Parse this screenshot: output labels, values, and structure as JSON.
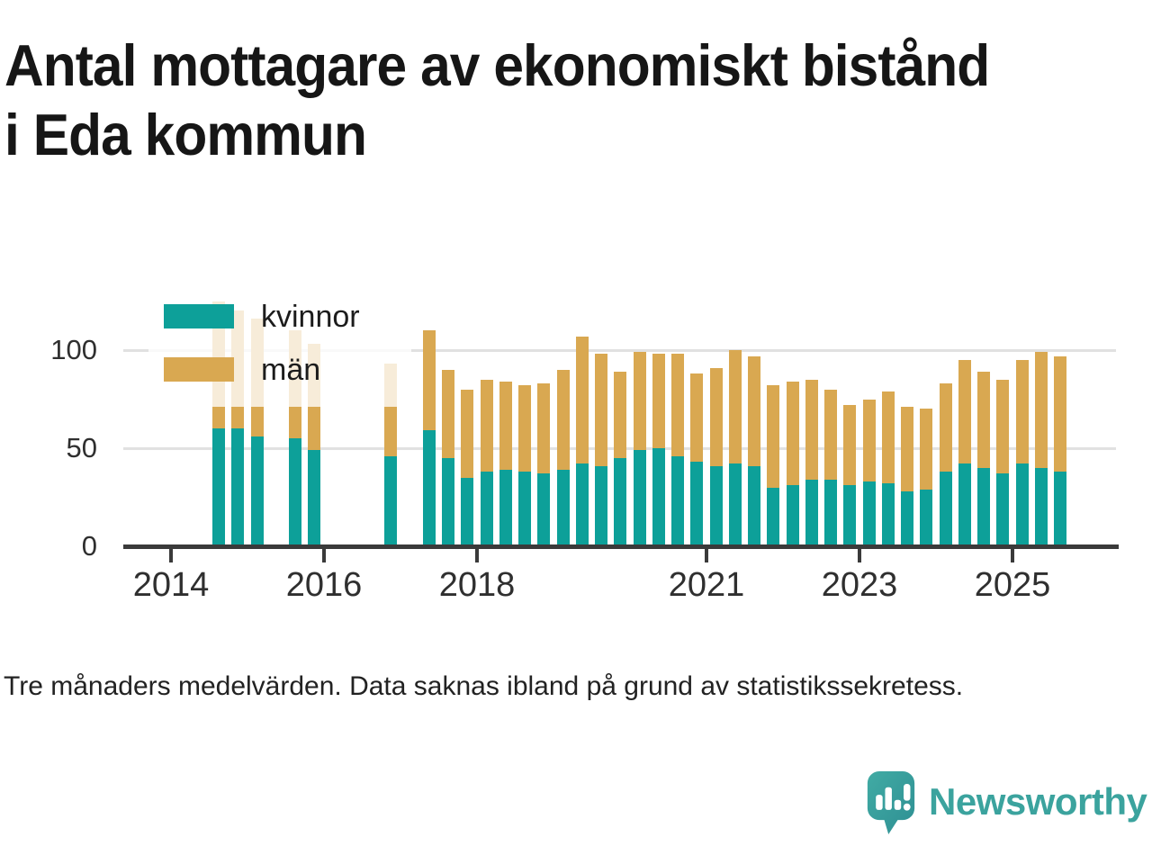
{
  "title_lines": [
    "Antal mottagare av ekonomiskt bistånd",
    "i Eda kommun"
  ],
  "note": "Tre månaders medelvärden. Data saknas ibland på grund av statistikssekretess.",
  "legend": {
    "items": [
      {
        "label": "kvinnor",
        "color": "#0DA099"
      },
      {
        "label": "män",
        "color": "#D9A851"
      }
    ]
  },
  "brand": {
    "name": "Newsworthy",
    "icon": "bar-chart-speech-bubble-icon",
    "color": "#3BA39E"
  },
  "chart_data": {
    "type": "bar",
    "stacked": true,
    "title": "Antal mottagare av ekonomiskt bistånd i Eda kommun",
    "xlabel": "",
    "ylabel": "",
    "grid": true,
    "legend_position": "top-left-inside",
    "colors": {
      "kvinnor": "#0DA099",
      "män": "#D9A851"
    },
    "y_axis": {
      "ticks": [
        0,
        50,
        100
      ],
      "max": 130
    },
    "x_axis": {
      "ticks": [
        2014,
        2016,
        2018,
        2021,
        2023,
        2025
      ],
      "range": [
        2013.4,
        2026.4
      ]
    },
    "series_names": [
      "kvinnor",
      "män"
    ],
    "note": "Tre månaders medelvärden. Data saknas ibland på grund av statistikssekretess.",
    "bars": [
      {
        "period": "2014-Q3",
        "kvinnor": 60,
        "män": 65
      },
      {
        "period": "2014-Q4",
        "kvinnor": 60,
        "män": 60
      },
      {
        "period": "2015-Q1",
        "kvinnor": 56,
        "män": 60
      },
      {
        "period": "2015-Q3",
        "kvinnor": 55,
        "män": 55
      },
      {
        "period": "2015-Q4",
        "kvinnor": 49,
        "män": 54
      },
      {
        "period": "2016-Q4",
        "kvinnor": 46,
        "män": 47
      },
      {
        "period": "2017-Q2",
        "kvinnor": 59,
        "män": 51
      },
      {
        "period": "2017-Q3",
        "kvinnor": 45,
        "män": 45
      },
      {
        "period": "2017-Q4",
        "kvinnor": 35,
        "män": 45
      },
      {
        "period": "2018-Q1",
        "kvinnor": 38,
        "män": 47
      },
      {
        "period": "2018-Q2",
        "kvinnor": 39,
        "män": 45
      },
      {
        "period": "2018-Q3",
        "kvinnor": 38,
        "män": 44
      },
      {
        "period": "2018-Q4",
        "kvinnor": 37,
        "män": 46
      },
      {
        "period": "2019-Q1",
        "kvinnor": 39,
        "män": 51
      },
      {
        "period": "2019-Q2",
        "kvinnor": 42,
        "män": 65
      },
      {
        "period": "2019-Q3",
        "kvinnor": 41,
        "män": 57
      },
      {
        "period": "2019-Q4",
        "kvinnor": 45,
        "män": 44
      },
      {
        "period": "2020-Q1",
        "kvinnor": 49,
        "män": 50
      },
      {
        "period": "2020-Q2",
        "kvinnor": 50,
        "män": 48
      },
      {
        "period": "2020-Q3",
        "kvinnor": 46,
        "män": 52
      },
      {
        "period": "2020-Q4",
        "kvinnor": 43,
        "män": 45
      },
      {
        "period": "2021-Q1",
        "kvinnor": 41,
        "män": 50
      },
      {
        "period": "2021-Q2",
        "kvinnor": 42,
        "män": 58
      },
      {
        "period": "2021-Q3",
        "kvinnor": 41,
        "män": 56
      },
      {
        "period": "2021-Q4",
        "kvinnor": 30,
        "män": 52
      },
      {
        "period": "2022-Q1",
        "kvinnor": 31,
        "män": 53
      },
      {
        "period": "2022-Q2",
        "kvinnor": 34,
        "män": 51
      },
      {
        "period": "2022-Q3",
        "kvinnor": 34,
        "män": 46
      },
      {
        "period": "2022-Q4",
        "kvinnor": 31,
        "män": 41
      },
      {
        "period": "2023-Q1",
        "kvinnor": 33,
        "män": 42
      },
      {
        "period": "2023-Q2",
        "kvinnor": 32,
        "män": 47
      },
      {
        "period": "2023-Q3",
        "kvinnor": 28,
        "män": 43
      },
      {
        "period": "2023-Q4",
        "kvinnor": 29,
        "män": 41
      },
      {
        "period": "2024-Q1",
        "kvinnor": 38,
        "män": 45
      },
      {
        "period": "2024-Q2",
        "kvinnor": 42,
        "män": 53
      },
      {
        "period": "2024-Q3",
        "kvinnor": 40,
        "män": 49
      },
      {
        "period": "2024-Q4",
        "kvinnor": 37,
        "män": 48
      },
      {
        "period": "2025-Q1",
        "kvinnor": 42,
        "män": 53
      },
      {
        "period": "2025-Q2",
        "kvinnor": 40,
        "män": 59
      },
      {
        "period": "2025-Q3",
        "kvinnor": 38,
        "män": 59
      }
    ]
  }
}
